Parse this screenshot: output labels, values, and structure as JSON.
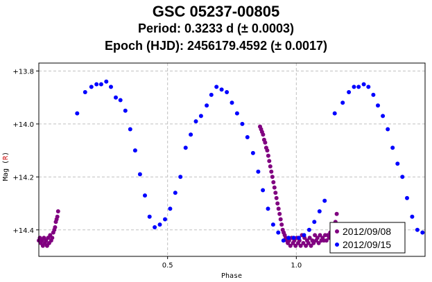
{
  "title": {
    "line1": "GSC 05237-00805",
    "line2": "Period: 0.3233 d (± 0.0003)",
    "line3": "Epoch (HJD): 2456179.4592 (± 0.0017)"
  },
  "colors": {
    "series1": "#800080",
    "series2": "#0000ff",
    "grid": "#c0c0c0",
    "axis": "#000000",
    "ylabel_accent": "#cc0000"
  },
  "chart_data": {
    "type": "scatter",
    "xlabel": "Phase",
    "ylabel_prefix": "Mag (",
    "ylabel_band": "R",
    "ylabel_suffix": ")",
    "xlim": [
      0.0,
      1.5
    ],
    "ylim": [
      14.5,
      13.77
    ],
    "y_inverted": true,
    "grid": true,
    "legend_position": "bottom-right",
    "x_ticks": [
      {
        "value": 0.5,
        "label": "0.5"
      },
      {
        "value": 1.0,
        "label": "1.0"
      }
    ],
    "y_ticks": [
      {
        "value": 13.8,
        "label": "+13.8"
      },
      {
        "value": 14.0,
        "label": "+14.0"
      },
      {
        "value": 14.2,
        "label": "+14.2"
      },
      {
        "value": 14.4,
        "label": "+14.4"
      }
    ],
    "series": [
      {
        "name": "2012/09/08",
        "x": [
          0.0,
          0.004,
          0.008,
          0.012,
          0.016,
          0.02,
          0.024,
          0.028,
          0.032,
          0.036,
          0.04,
          0.044,
          0.048,
          0.052,
          0.056,
          0.06,
          0.063,
          0.066,
          0.069,
          0.072,
          0.075,
          0.859,
          0.863,
          0.867,
          0.871,
          0.875,
          0.879,
          0.883,
          0.887,
          0.891,
          0.895,
          0.899,
          0.903,
          0.907,
          0.911,
          0.915,
          0.919,
          0.923,
          0.927,
          0.931,
          0.935,
          0.939,
          0.943,
          0.947,
          0.951,
          0.955,
          0.959,
          0.963,
          0.967,
          0.972,
          0.977,
          0.982,
          0.987,
          0.992,
          0.997,
          1.002,
          1.007,
          1.012,
          1.017,
          1.022,
          1.027,
          1.032,
          1.037,
          1.042,
          1.047,
          1.052,
          1.057,
          1.062,
          1.067,
          1.072,
          1.077,
          1.082,
          1.087,
          1.092,
          1.097,
          1.102,
          1.107,
          1.112,
          1.117,
          1.122,
          1.127,
          1.132,
          1.137,
          1.142,
          1.147,
          1.152,
          1.157
        ],
        "y": [
          14.44,
          14.43,
          14.45,
          14.44,
          14.46,
          14.43,
          14.45,
          14.44,
          14.46,
          14.43,
          14.45,
          14.42,
          14.44,
          14.43,
          14.41,
          14.4,
          14.39,
          14.37,
          14.36,
          14.35,
          14.33,
          14.01,
          14.02,
          14.03,
          14.04,
          14.06,
          14.07,
          14.09,
          14.1,
          14.12,
          14.14,
          14.16,
          14.18,
          14.2,
          14.22,
          14.24,
          14.26,
          14.28,
          14.3,
          14.32,
          14.34,
          14.36,
          14.38,
          14.4,
          14.41,
          14.42,
          14.43,
          14.44,
          14.45,
          14.44,
          14.46,
          14.43,
          14.45,
          14.44,
          14.46,
          14.43,
          14.45,
          14.44,
          14.46,
          14.42,
          14.45,
          14.43,
          14.46,
          14.44,
          14.45,
          14.43,
          14.46,
          14.44,
          14.45,
          14.42,
          14.44,
          14.43,
          14.45,
          14.42,
          14.44,
          14.43,
          14.44,
          14.42,
          14.44,
          14.42,
          14.43,
          14.41,
          14.42,
          14.4,
          14.39,
          14.37,
          14.34
        ]
      },
      {
        "name": "2012/09/15",
        "x": [
          0.149,
          0.18,
          0.204,
          0.224,
          0.242,
          0.262,
          0.28,
          0.299,
          0.317,
          0.336,
          0.355,
          0.374,
          0.393,
          0.412,
          0.43,
          0.45,
          0.47,
          0.49,
          0.51,
          0.53,
          0.55,
          0.57,
          0.59,
          0.61,
          0.63,
          0.652,
          0.67,
          0.69,
          0.71,
          0.73,
          0.75,
          0.77,
          0.79,
          0.81,
          0.832,
          0.852,
          0.87,
          0.89,
          0.91,
          0.93,
          0.95,
          0.97,
          0.99,
          1.01,
          1.03,
          1.05,
          1.07,
          1.09,
          1.11,
          1.149,
          1.18,
          1.204,
          1.224,
          1.242,
          1.262,
          1.28,
          1.299,
          1.317,
          1.336,
          1.355,
          1.374,
          1.393,
          1.412,
          1.43,
          1.45,
          1.47,
          1.49
        ],
        "y": [
          13.96,
          13.88,
          13.86,
          13.85,
          13.85,
          13.84,
          13.86,
          13.9,
          13.91,
          13.95,
          14.02,
          14.1,
          14.19,
          14.27,
          14.35,
          14.39,
          14.38,
          14.36,
          14.32,
          14.26,
          14.2,
          14.09,
          14.04,
          13.99,
          13.97,
          13.93,
          13.89,
          13.86,
          13.87,
          13.88,
          13.92,
          13.96,
          14.0,
          14.05,
          14.11,
          14.18,
          14.25,
          14.32,
          14.38,
          14.41,
          14.44,
          14.43,
          14.43,
          14.43,
          14.42,
          14.4,
          14.37,
          14.33,
          14.29,
          13.96,
          13.92,
          13.88,
          13.86,
          13.86,
          13.85,
          13.86,
          13.89,
          13.93,
          13.97,
          14.02,
          14.09,
          14.15,
          14.2,
          14.28,
          14.35,
          14.4,
          14.41
        ]
      }
    ]
  }
}
